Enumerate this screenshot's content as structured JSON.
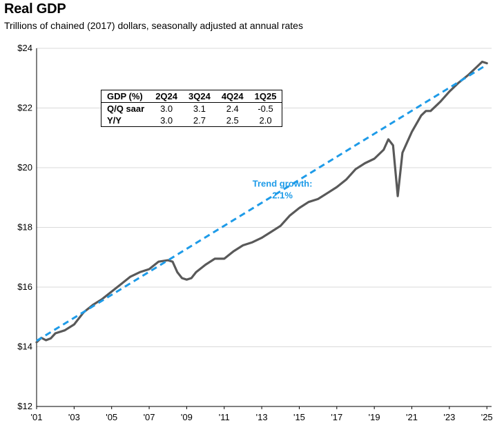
{
  "title": "Real GDP",
  "subtitle": "Trillions of chained (2017) dollars, seasonally adjusted at annual rates",
  "colors": {
    "gdp_line": "#595959",
    "trend_line": "#1e9be8",
    "grid": "#d9d9d9"
  },
  "table": {
    "headers": [
      "GDP (%)",
      "2Q24",
      "3Q24",
      "4Q24",
      "1Q25"
    ],
    "rows": [
      {
        "label": "Q/Q saar",
        "values": [
          "3.0",
          "3.1",
          "2.4",
          "-0.5"
        ]
      },
      {
        "label": "Y/Y",
        "values": [
          "3.0",
          "2.7",
          "2.5",
          "2.0"
        ]
      }
    ]
  },
  "chart_data": {
    "type": "line",
    "title": "Real GDP",
    "subtitle": "Trillions of chained (2017) dollars, seasonally adjusted at annual rates",
    "x_tick_labels": [
      "'01",
      "'03",
      "'05",
      "'07",
      "'09",
      "'11",
      "'13",
      "'15",
      "'17",
      "'19",
      "'21",
      "'23",
      "'25"
    ],
    "y_tick_labels": [
      "$12",
      "$14",
      "$16",
      "$18",
      "$20",
      "$22",
      "$24"
    ],
    "xlim": [
      2001,
      2025.25
    ],
    "ylim": [
      12,
      24
    ],
    "grid": "horizontal",
    "annotation": {
      "text": [
        "Trend growth:",
        "2.1%"
      ],
      "x": 2013.0,
      "y": 19.0
    },
    "series": [
      {
        "style": "solid",
        "x": [
          2001.0,
          2001.25,
          2001.5,
          2001.75,
          2002.0,
          2002.5,
          2003.0,
          2003.5,
          2004.0,
          2004.5,
          2005.0,
          2005.5,
          2006.0,
          2006.5,
          2007.0,
          2007.5,
          2008.0,
          2008.25,
          2008.5,
          2008.75,
          2009.0,
          2009.25,
          2009.5,
          2010.0,
          2010.5,
          2011.0,
          2011.5,
          2012.0,
          2012.5,
          2013.0,
          2013.5,
          2014.0,
          2014.5,
          2015.0,
          2015.5,
          2016.0,
          2016.5,
          2017.0,
          2017.5,
          2018.0,
          2018.5,
          2019.0,
          2019.5,
          2019.75,
          2020.0,
          2020.25,
          2020.5,
          2020.75,
          2021.0,
          2021.5,
          2021.75,
          2022.0,
          2022.5,
          2023.0,
          2023.5,
          2024.0,
          2024.5,
          2024.75,
          2025.0
        ],
        "y": [
          14.15,
          14.3,
          14.22,
          14.28,
          14.45,
          14.55,
          14.75,
          15.15,
          15.4,
          15.6,
          15.85,
          16.1,
          16.35,
          16.5,
          16.6,
          16.85,
          16.9,
          16.85,
          16.5,
          16.3,
          16.25,
          16.3,
          16.5,
          16.75,
          16.95,
          16.95,
          17.2,
          17.4,
          17.5,
          17.65,
          17.85,
          18.05,
          18.4,
          18.65,
          18.85,
          18.95,
          19.15,
          19.35,
          19.6,
          19.95,
          20.15,
          20.3,
          20.6,
          20.95,
          20.75,
          19.05,
          20.5,
          20.85,
          21.2,
          21.75,
          21.9,
          21.9,
          22.2,
          22.55,
          22.85,
          23.1,
          23.4,
          23.55,
          23.5
        ]
      },
      {
        "name": "Trend growth: 2.1%",
        "style": "dashed",
        "x": [
          2001.0,
          2025.0
        ],
        "y": [
          14.2,
          23.45
        ]
      }
    ]
  }
}
